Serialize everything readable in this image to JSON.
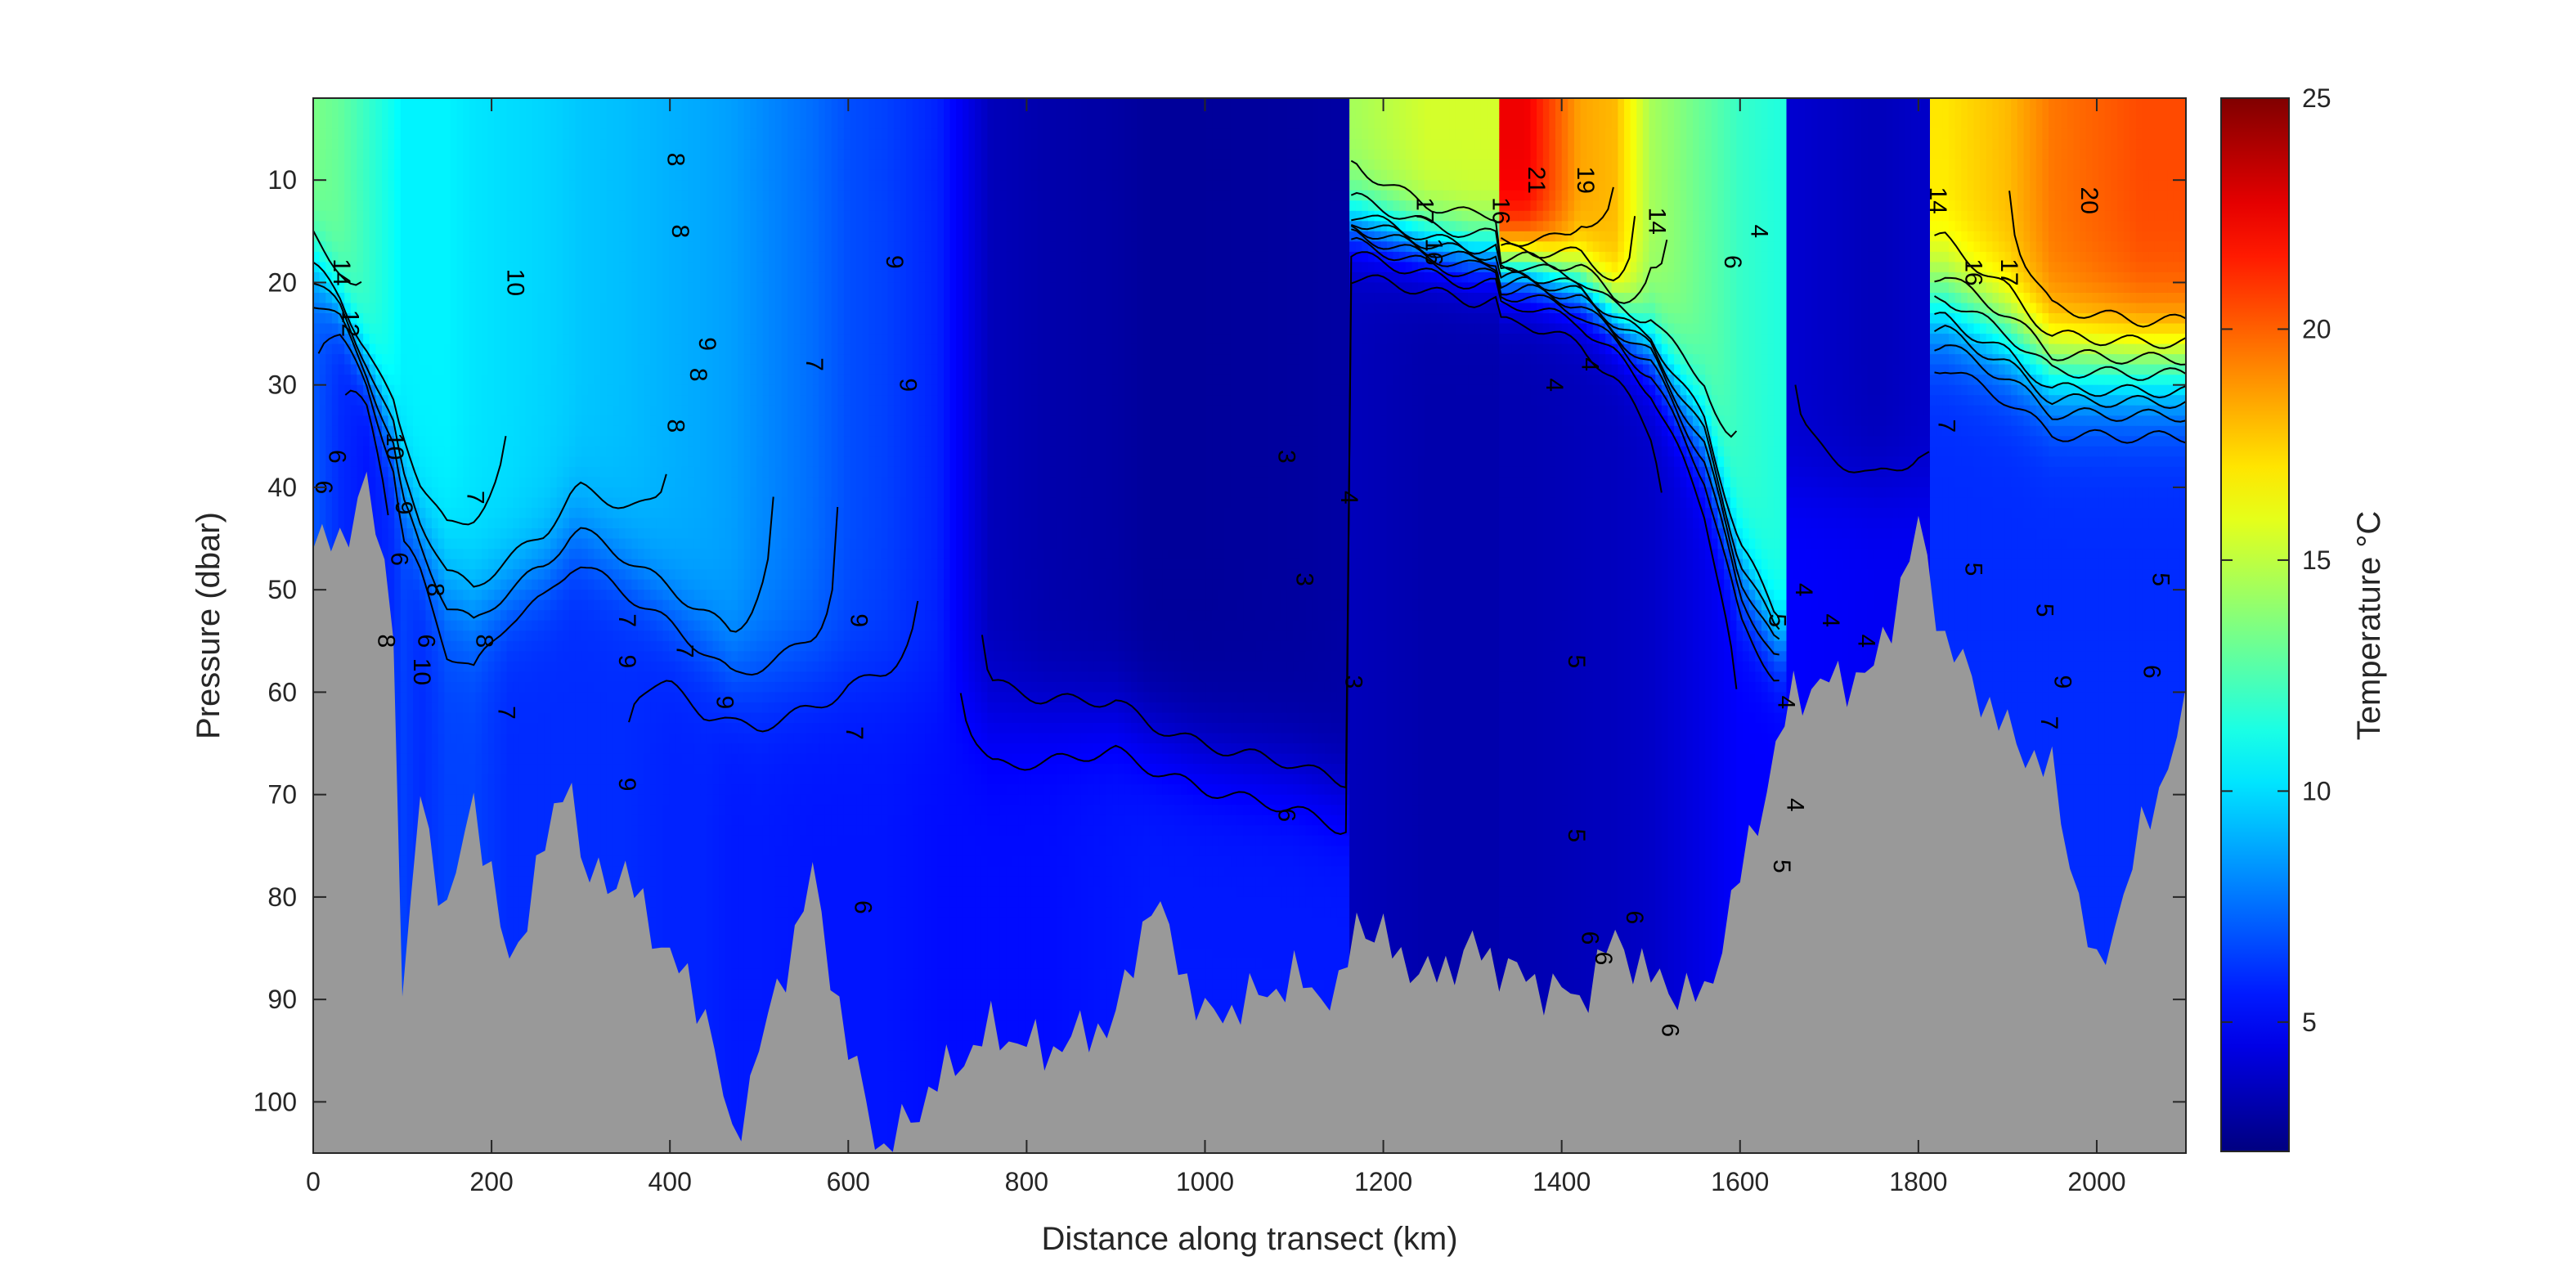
{
  "chart_data": {
    "type": "heatmap",
    "title": "",
    "xlabel": "Distance along transect (km)",
    "ylabel": "Pressure (dbar)",
    "xlim": [
      0,
      2100
    ],
    "ylim": [
      105,
      2
    ],
    "y_reversed": true,
    "x_ticks": [
      0,
      200,
      400,
      600,
      800,
      1000,
      1200,
      1400,
      1600,
      1800,
      2000
    ],
    "y_ticks": [
      10,
      20,
      30,
      40,
      50,
      60,
      70,
      80,
      90,
      100
    ],
    "colorbar": {
      "label": "Temperature °C",
      "limits": [
        2.2,
        25
      ],
      "ticks": [
        5,
        10,
        15,
        20,
        25
      ],
      "colormap": "jet"
    },
    "bottom_fill_color": "#999999",
    "columns": [
      {
        "x": 0,
        "surface_temp": 13.5,
        "bottom_temp": 7.0,
        "thermocline_depth": 18,
        "thermocline_width": 10,
        "seafloor": 46
      },
      {
        "x": 30,
        "surface_temp": 13.0,
        "bottom_temp": 6.0,
        "thermocline_depth": 22,
        "thermocline_width": 8,
        "seafloor": 45
      },
      {
        "x": 60,
        "surface_temp": 12.0,
        "bottom_temp": 5.5,
        "thermocline_depth": 28,
        "thermocline_width": 8,
        "seafloor": 40
      },
      {
        "x": 90,
        "surface_temp": 11.0,
        "bottom_temp": 6.0,
        "thermocline_depth": 35,
        "thermocline_width": 10,
        "seafloor": 52
      },
      {
        "x": 100,
        "surface_temp": 10.5,
        "bottom_temp": 6.5,
        "thermocline_depth": 40,
        "thermocline_width": 12,
        "seafloor": 91
      },
      {
        "x": 120,
        "surface_temp": 10.5,
        "bottom_temp": 6.0,
        "thermocline_depth": 45,
        "thermocline_width": 12,
        "seafloor": 70
      },
      {
        "x": 150,
        "surface_temp": 10.5,
        "bottom_temp": 6.5,
        "thermocline_depth": 50,
        "thermocline_width": 14,
        "seafloor": 82
      },
      {
        "x": 180,
        "surface_temp": 10.2,
        "bottom_temp": 6.5,
        "thermocline_depth": 52,
        "thermocline_width": 14,
        "seafloor": 70
      },
      {
        "x": 220,
        "surface_temp": 10.0,
        "bottom_temp": 6.0,
        "thermocline_depth": 50,
        "thermocline_width": 12,
        "seafloor": 87
      },
      {
        "x": 260,
        "surface_temp": 9.8,
        "bottom_temp": 6.0,
        "thermocline_depth": 48,
        "thermocline_width": 12,
        "seafloor": 75
      },
      {
        "x": 290,
        "surface_temp": 9.6,
        "bottom_temp": 6.0,
        "thermocline_depth": 45,
        "thermocline_width": 12,
        "seafloor": 67
      },
      {
        "x": 300,
        "surface_temp": 9.5,
        "bottom_temp": 6.0,
        "thermocline_depth": 45,
        "thermocline_width": 12,
        "seafloor": 78
      },
      {
        "x": 350,
        "surface_temp": 9.3,
        "bottom_temp": 6.0,
        "thermocline_depth": 48,
        "thermocline_width": 12,
        "seafloor": 78
      },
      {
        "x": 400,
        "surface_temp": 9.0,
        "bottom_temp": 5.8,
        "thermocline_depth": 52,
        "thermocline_width": 12,
        "seafloor": 86
      },
      {
        "x": 440,
        "surface_temp": 8.8,
        "bottom_temp": 5.8,
        "thermocline_depth": 55,
        "thermocline_width": 12,
        "seafloor": 91
      },
      {
        "x": 470,
        "surface_temp": 8.6,
        "bottom_temp": 5.6,
        "thermocline_depth": 58,
        "thermocline_width": 12,
        "seafloor": 104
      },
      {
        "x": 500,
        "surface_temp": 8.2,
        "bottom_temp": 5.6,
        "thermocline_depth": 58,
        "thermocline_width": 14,
        "seafloor": 95
      },
      {
        "x": 560,
        "surface_temp": 7.5,
        "bottom_temp": 5.5,
        "thermocline_depth": 58,
        "thermocline_width": 14,
        "seafloor": 78
      },
      {
        "x": 600,
        "surface_temp": 6.8,
        "bottom_temp": 5.5,
        "thermocline_depth": 58,
        "thermocline_width": 14,
        "seafloor": 95
      },
      {
        "x": 640,
        "surface_temp": 6.5,
        "bottom_temp": 5.5,
        "thermocline_depth": 58,
        "thermocline_width": 14,
        "seafloor": 105
      },
      {
        "x": 700,
        "surface_temp": 5.8,
        "bottom_temp": 5.3,
        "thermocline_depth": 60,
        "thermocline_width": 14,
        "seafloor": 98
      },
      {
        "x": 760,
        "surface_temp": 3.5,
        "bottom_temp": 5.3,
        "thermocline_depth": 62,
        "thermocline_width": 14,
        "seafloor": 93
      },
      {
        "x": 820,
        "surface_temp": 3.2,
        "bottom_temp": 5.3,
        "thermocline_depth": 62,
        "thermocline_width": 12,
        "seafloor": 95
      },
      {
        "x": 900,
        "surface_temp": 3.0,
        "bottom_temp": 5.5,
        "thermocline_depth": 62,
        "thermocline_width": 12,
        "seafloor": 92
      },
      {
        "x": 940,
        "surface_temp": 2.8,
        "bottom_temp": 5.6,
        "thermocline_depth": 64,
        "thermocline_width": 12,
        "seafloor": 80
      },
      {
        "x": 1000,
        "surface_temp": 2.8,
        "bottom_temp": 5.6,
        "thermocline_depth": 66,
        "thermocline_width": 12,
        "seafloor": 92
      },
      {
        "x": 1100,
        "surface_temp": 2.9,
        "bottom_temp": 5.6,
        "thermocline_depth": 68,
        "thermocline_width": 12,
        "seafloor": 88
      },
      {
        "x": 1150,
        "surface_temp": 3.0,
        "bottom_temp": 5.6,
        "thermocline_depth": 70,
        "thermocline_width": 12,
        "seafloor": 90
      },
      {
        "x": 1170,
        "surface_temp": 14.5,
        "bottom_temp": 3.5,
        "thermocline_depth": 14,
        "thermocline_width": 8,
        "seafloor": 82
      },
      {
        "x": 1250,
        "surface_temp": 15.5,
        "bottom_temp": 3.2,
        "thermocline_depth": 16,
        "thermocline_width": 8,
        "seafloor": 88
      },
      {
        "x": 1300,
        "surface_temp": 15.5,
        "bottom_temp": 3.2,
        "thermocline_depth": 17,
        "thermocline_width": 8,
        "seafloor": 85
      },
      {
        "x": 1360,
        "surface_temp": 22.5,
        "bottom_temp": 3.3,
        "thermocline_depth": 18,
        "thermocline_width": 8,
        "seafloor": 88
      },
      {
        "x": 1420,
        "surface_temp": 18.5,
        "bottom_temp": 3.5,
        "thermocline_depth": 20,
        "thermocline_width": 8,
        "seafloor": 90
      },
      {
        "x": 1460,
        "surface_temp": 18.0,
        "bottom_temp": 3.6,
        "thermocline_depth": 23,
        "thermocline_width": 8,
        "seafloor": 84
      },
      {
        "x": 1500,
        "surface_temp": 14.5,
        "bottom_temp": 3.8,
        "thermocline_depth": 26,
        "thermocline_width": 10,
        "seafloor": 88
      },
      {
        "x": 1560,
        "surface_temp": 13.0,
        "bottom_temp": 4.5,
        "thermocline_depth": 35,
        "thermocline_width": 12,
        "seafloor": 90
      },
      {
        "x": 1600,
        "surface_temp": 12.0,
        "bottom_temp": 5.0,
        "thermocline_depth": 48,
        "thermocline_width": 12,
        "seafloor": 78
      },
      {
        "x": 1640,
        "surface_temp": 11.5,
        "bottom_temp": 5.0,
        "thermocline_depth": 55,
        "thermocline_width": 10,
        "seafloor": 66
      },
      {
        "x": 1660,
        "surface_temp": 4.0,
        "bottom_temp": 5.0,
        "thermocline_depth": 40,
        "thermocline_width": 10,
        "seafloor": 60
      },
      {
        "x": 1750,
        "surface_temp": 3.5,
        "bottom_temp": 4.8,
        "thermocline_depth": 40,
        "thermocline_width": 10,
        "seafloor": 58
      },
      {
        "x": 1800,
        "surface_temp": 3.8,
        "bottom_temp": 4.8,
        "thermocline_depth": 40,
        "thermocline_width": 10,
        "seafloor": 44
      },
      {
        "x": 1830,
        "surface_temp": 17.0,
        "bottom_temp": 6.0,
        "thermocline_depth": 22,
        "thermocline_width": 12,
        "seafloor": 55
      },
      {
        "x": 1900,
        "surface_temp": 18.0,
        "bottom_temp": 6.0,
        "thermocline_depth": 25,
        "thermocline_width": 12,
        "seafloor": 64
      },
      {
        "x": 1950,
        "surface_temp": 19.5,
        "bottom_temp": 6.0,
        "thermocline_depth": 28,
        "thermocline_width": 12,
        "seafloor": 68
      },
      {
        "x": 2000,
        "surface_temp": 20.0,
        "bottom_temp": 6.0,
        "thermocline_depth": 28,
        "thermocline_width": 12,
        "seafloor": 88
      },
      {
        "x": 2050,
        "surface_temp": 20.5,
        "bottom_temp": 6.0,
        "thermocline_depth": 28,
        "thermocline_width": 12,
        "seafloor": 74
      },
      {
        "x": 2100,
        "surface_temp": 20.5,
        "bottom_temp": 6.0,
        "thermocline_depth": 28,
        "thermocline_width": 12,
        "seafloor": 62
      }
    ],
    "contour_labels": [
      {
        "x": 30,
        "y": 19,
        "text": "14"
      },
      {
        "x": 40,
        "y": 24,
        "text": "12"
      },
      {
        "x": 90,
        "y": 36,
        "text": "10"
      },
      {
        "x": 25,
        "y": 37,
        "text": "6"
      },
      {
        "x": 10,
        "y": 40,
        "text": "6"
      },
      {
        "x": 100,
        "y": 42,
        "text": "9"
      },
      {
        "x": 95,
        "y": 47,
        "text": "6"
      },
      {
        "x": 135,
        "y": 50,
        "text": "8"
      },
      {
        "x": 80,
        "y": 55,
        "text": "8"
      },
      {
        "x": 125,
        "y": 55,
        "text": "6"
      },
      {
        "x": 120,
        "y": 58,
        "text": "10"
      },
      {
        "x": 190,
        "y": 55,
        "text": "8"
      },
      {
        "x": 180,
        "y": 41,
        "text": "7"
      },
      {
        "x": 215,
        "y": 62,
        "text": "7"
      },
      {
        "x": 225,
        "y": 20,
        "text": "10"
      },
      {
        "x": 405,
        "y": 8,
        "text": "8"
      },
      {
        "x": 410,
        "y": 15,
        "text": "8"
      },
      {
        "x": 440,
        "y": 26,
        "text": "9"
      },
      {
        "x": 430,
        "y": 29,
        "text": "8"
      },
      {
        "x": 405,
        "y": 34,
        "text": "8"
      },
      {
        "x": 560,
        "y": 28,
        "text": "7"
      },
      {
        "x": 650,
        "y": 18,
        "text": "9"
      },
      {
        "x": 665,
        "y": 30,
        "text": "9"
      },
      {
        "x": 350,
        "y": 53,
        "text": "7"
      },
      {
        "x": 350,
        "y": 57,
        "text": "9"
      },
      {
        "x": 415,
        "y": 56,
        "text": "7"
      },
      {
        "x": 350,
        "y": 69,
        "text": "9"
      },
      {
        "x": 460,
        "y": 61,
        "text": "9"
      },
      {
        "x": 610,
        "y": 53,
        "text": "9"
      },
      {
        "x": 605,
        "y": 64,
        "text": "7"
      },
      {
        "x": 615,
        "y": 81,
        "text": "6"
      },
      {
        "x": 1090,
        "y": 37,
        "text": "3"
      },
      {
        "x": 1110,
        "y": 49,
        "text": "3"
      },
      {
        "x": 1160,
        "y": 41,
        "text": "4"
      },
      {
        "x": 1165,
        "y": 59,
        "text": "3"
      },
      {
        "x": 1090,
        "y": 72,
        "text": "6"
      },
      {
        "x": 1245,
        "y": 13,
        "text": "17"
      },
      {
        "x": 1255,
        "y": 17,
        "text": "16"
      },
      {
        "x": 1330,
        "y": 13,
        "text": "16"
      },
      {
        "x": 1370,
        "y": 10,
        "text": "21"
      },
      {
        "x": 1425,
        "y": 10,
        "text": "19"
      },
      {
        "x": 1390,
        "y": 30,
        "text": "4"
      },
      {
        "x": 1430,
        "y": 28,
        "text": "4"
      },
      {
        "x": 1415,
        "y": 57,
        "text": "5"
      },
      {
        "x": 1415,
        "y": 74,
        "text": "5"
      },
      {
        "x": 1430,
        "y": 84,
        "text": "6"
      },
      {
        "x": 1480,
        "y": 82,
        "text": "6"
      },
      {
        "x": 1445,
        "y": 86,
        "text": "6"
      },
      {
        "x": 1520,
        "y": 93,
        "text": "6"
      },
      {
        "x": 1505,
        "y": 14,
        "text": "14"
      },
      {
        "x": 1590,
        "y": 18,
        "text": "6"
      },
      {
        "x": 1620,
        "y": 15,
        "text": "4"
      },
      {
        "x": 1670,
        "y": 50,
        "text": "4"
      },
      {
        "x": 1640,
        "y": 53,
        "text": "5"
      },
      {
        "x": 1650,
        "y": 61,
        "text": "4"
      },
      {
        "x": 1660,
        "y": 71,
        "text": "4"
      },
      {
        "x": 1645,
        "y": 77,
        "text": "5"
      },
      {
        "x": 1700,
        "y": 53,
        "text": "4"
      },
      {
        "x": 1740,
        "y": 55,
        "text": "4"
      },
      {
        "x": 1820,
        "y": 12,
        "text": "14"
      },
      {
        "x": 1860,
        "y": 19,
        "text": "16"
      },
      {
        "x": 1900,
        "y": 19,
        "text": "17"
      },
      {
        "x": 1990,
        "y": 12,
        "text": "20"
      },
      {
        "x": 1830,
        "y": 34,
        "text": "7"
      },
      {
        "x": 1860,
        "y": 48,
        "text": "5"
      },
      {
        "x": 1940,
        "y": 52,
        "text": "5"
      },
      {
        "x": 1960,
        "y": 59,
        "text": "9"
      },
      {
        "x": 1945,
        "y": 63,
        "text": "7"
      },
      {
        "x": 2060,
        "y": 58,
        "text": "6"
      },
      {
        "x": 2070,
        "y": 49,
        "text": "5"
      }
    ]
  }
}
